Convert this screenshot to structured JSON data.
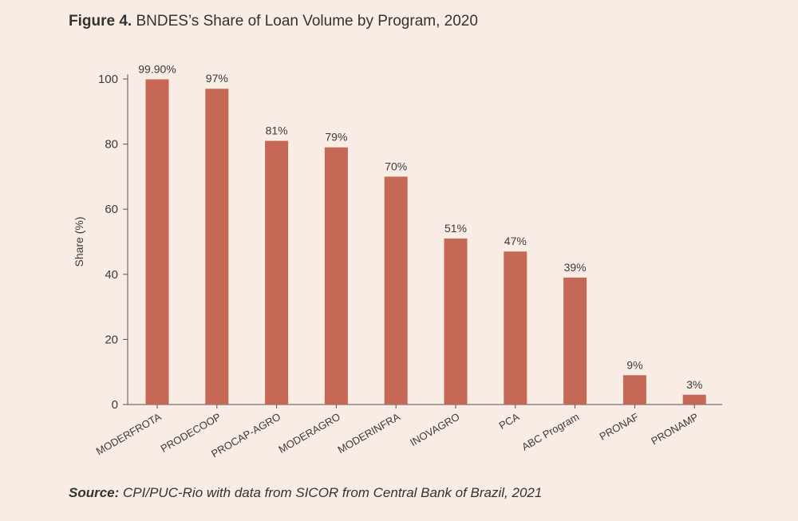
{
  "header": {
    "figure_label": "Figure 4.",
    "title": "BNDES’s Share of Loan Volume by Program, 2020"
  },
  "footer": {
    "source_label": "Source:",
    "source_text": "CPI/PUC-Rio with data from SICOR from Central Bank of Brazil, 2021"
  },
  "colors": {
    "bar": "#c56856",
    "background": "#f8ece5",
    "axis": "#555555"
  },
  "chart_data": {
    "type": "bar",
    "title": "BNDES’s Share of Loan Volume by Program, 2020",
    "xlabel": "",
    "ylabel": "Share (%)",
    "ylim": [
      0,
      100
    ],
    "yticks": [
      0,
      20,
      40,
      60,
      80,
      100
    ],
    "grid": false,
    "categories": [
      "MODERFROTA",
      "PRODECOOP",
      "PROCAP-AGRO",
      "MODERAGRO",
      "MODERINFRA",
      "INOVAGRO",
      "PCA",
      "ABC Program",
      "PRONAF",
      "PRONAMP"
    ],
    "values": [
      99.9,
      97,
      81,
      79,
      70,
      51,
      47,
      39,
      9,
      3
    ],
    "data_labels": [
      "99.90%",
      "97%",
      "81%",
      "79%",
      "70%",
      "51%",
      "47%",
      "39%",
      "9%",
      "3%"
    ]
  }
}
